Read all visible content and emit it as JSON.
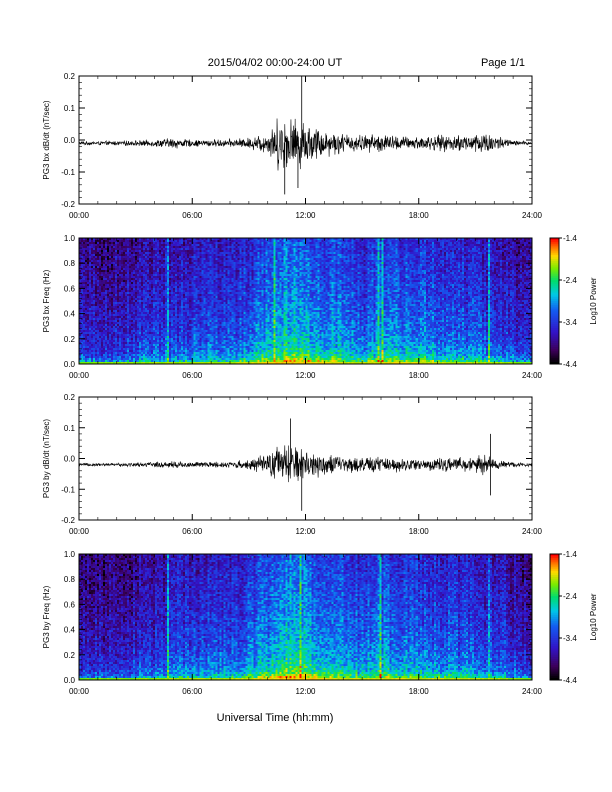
{
  "header": {
    "title": "2015/04/02  00:00-24:00 UT",
    "page": "Page 1/1"
  },
  "footer": {
    "xlabel": "Universal Time (hh:mm)"
  },
  "colorbar": {
    "label": "Log10 Power",
    "ticks": [
      "-1.4",
      "-2.4",
      "-3.4",
      "-4.4"
    ],
    "range": [
      -4.4,
      -1.4
    ]
  },
  "chart_data": [
    {
      "type": "line",
      "ylabel": "PG3 bx dB/dt (nT/sec)",
      "xlim": [
        0,
        24
      ],
      "ylim": [
        -0.2,
        0.2
      ],
      "xticks": [
        "00:00",
        "06:00",
        "12:00",
        "18:00",
        "24:00"
      ],
      "yticks": [
        "0.2",
        "0.1",
        "0.0",
        "-0.1",
        "-0.2"
      ],
      "baseline": -0.01,
      "envelope_hours": [
        0,
        2,
        4,
        5,
        6,
        8,
        9,
        10,
        10.5,
        11,
        11.5,
        12,
        12.5,
        13,
        14,
        15,
        16,
        17,
        18,
        19,
        20,
        21,
        21.5,
        22,
        23,
        24
      ],
      "envelope_amplitude": [
        0.006,
        0.008,
        0.012,
        0.02,
        0.012,
        0.014,
        0.02,
        0.04,
        0.09,
        0.1,
        0.09,
        0.08,
        0.06,
        0.05,
        0.035,
        0.03,
        0.035,
        0.025,
        0.025,
        0.028,
        0.03,
        0.035,
        0.045,
        0.03,
        0.01,
        0.006
      ],
      "peaks": [
        {
          "time": 11.8,
          "value": 0.2
        },
        {
          "time": 11.6,
          "value": -0.15
        },
        {
          "time": 10.9,
          "value": -0.17
        }
      ]
    },
    {
      "type": "heatmap",
      "ylabel": "PG3 bx Freq (Hz)",
      "xlim": [
        0,
        24
      ],
      "ylim": [
        0,
        1.0
      ],
      "xticks": [
        "00:00",
        "06:00",
        "12:00",
        "18:00",
        "24:00"
      ],
      "yticks": [
        "1.0",
        "0.8",
        "0.6",
        "0.4",
        "0.2",
        "0.0"
      ],
      "colorbar_ticks": [
        "-1.4",
        "-2.4",
        "-3.4",
        "-4.4"
      ],
      "activity_hours": [
        0,
        2,
        4,
        5,
        6,
        8,
        9,
        10,
        11,
        12,
        13,
        14,
        15,
        16,
        17,
        18,
        19,
        20,
        21,
        22,
        23,
        24
      ],
      "activity_level": [
        0.25,
        0.3,
        0.4,
        0.45,
        0.45,
        0.5,
        0.6,
        0.75,
        0.9,
        0.85,
        0.75,
        0.65,
        0.55,
        0.75,
        0.7,
        0.65,
        0.6,
        0.55,
        0.5,
        0.45,
        0.35,
        0.25
      ],
      "vertical_streaks_hours": [
        4.7,
        10.3,
        15.8,
        16.0,
        21.7
      ]
    },
    {
      "type": "line",
      "ylabel": "PG3 by dB/dt (nT/sec)",
      "xlim": [
        0,
        24
      ],
      "ylim": [
        -0.2,
        0.2
      ],
      "xticks": [
        "00:00",
        "06:00",
        "12:00",
        "18:00",
        "24:00"
      ],
      "yticks": [
        "0.2",
        "0.1",
        "0.0",
        "-0.1",
        "-0.2"
      ],
      "baseline": -0.02,
      "envelope_hours": [
        0,
        2,
        4,
        5,
        6,
        8,
        9,
        10,
        10.5,
        11,
        11.5,
        12,
        12.5,
        13,
        14,
        15,
        16,
        17,
        18,
        19,
        20,
        21,
        21.5,
        22,
        23,
        24
      ],
      "envelope_amplitude": [
        0.005,
        0.006,
        0.01,
        0.015,
        0.01,
        0.012,
        0.018,
        0.04,
        0.07,
        0.075,
        0.07,
        0.06,
        0.05,
        0.04,
        0.03,
        0.028,
        0.03,
        0.025,
        0.022,
        0.025,
        0.025,
        0.03,
        0.04,
        0.02,
        0.01,
        0.006
      ],
      "peaks": [
        {
          "time": 11.2,
          "value": 0.13
        },
        {
          "time": 11.8,
          "value": -0.17
        },
        {
          "time": 21.8,
          "value": 0.08
        },
        {
          "time": 21.8,
          "value": -0.12
        }
      ]
    },
    {
      "type": "heatmap",
      "ylabel": "PG3 by Freq (Hz)",
      "xlim": [
        0,
        24
      ],
      "ylim": [
        0,
        1.0
      ],
      "xticks": [
        "00:00",
        "06:00",
        "12:00",
        "18:00",
        "24:00"
      ],
      "yticks": [
        "1.0",
        "0.8",
        "0.6",
        "0.4",
        "0.2",
        "0.0"
      ],
      "colorbar_ticks": [
        "-1.4",
        "-2.4",
        "-3.4",
        "-4.4"
      ],
      "activity_hours": [
        0,
        2,
        4,
        5,
        6,
        8,
        9,
        10,
        11,
        12,
        13,
        14,
        15,
        16,
        17,
        18,
        19,
        20,
        21,
        22,
        23,
        24
      ],
      "activity_level": [
        0.2,
        0.25,
        0.35,
        0.45,
        0.45,
        0.5,
        0.6,
        0.75,
        0.95,
        0.85,
        0.75,
        0.65,
        0.6,
        0.7,
        0.65,
        0.6,
        0.55,
        0.55,
        0.5,
        0.45,
        0.35,
        0.2
      ],
      "vertical_streaks_hours": [
        4.7,
        11.7,
        15.9,
        21.7
      ]
    }
  ]
}
